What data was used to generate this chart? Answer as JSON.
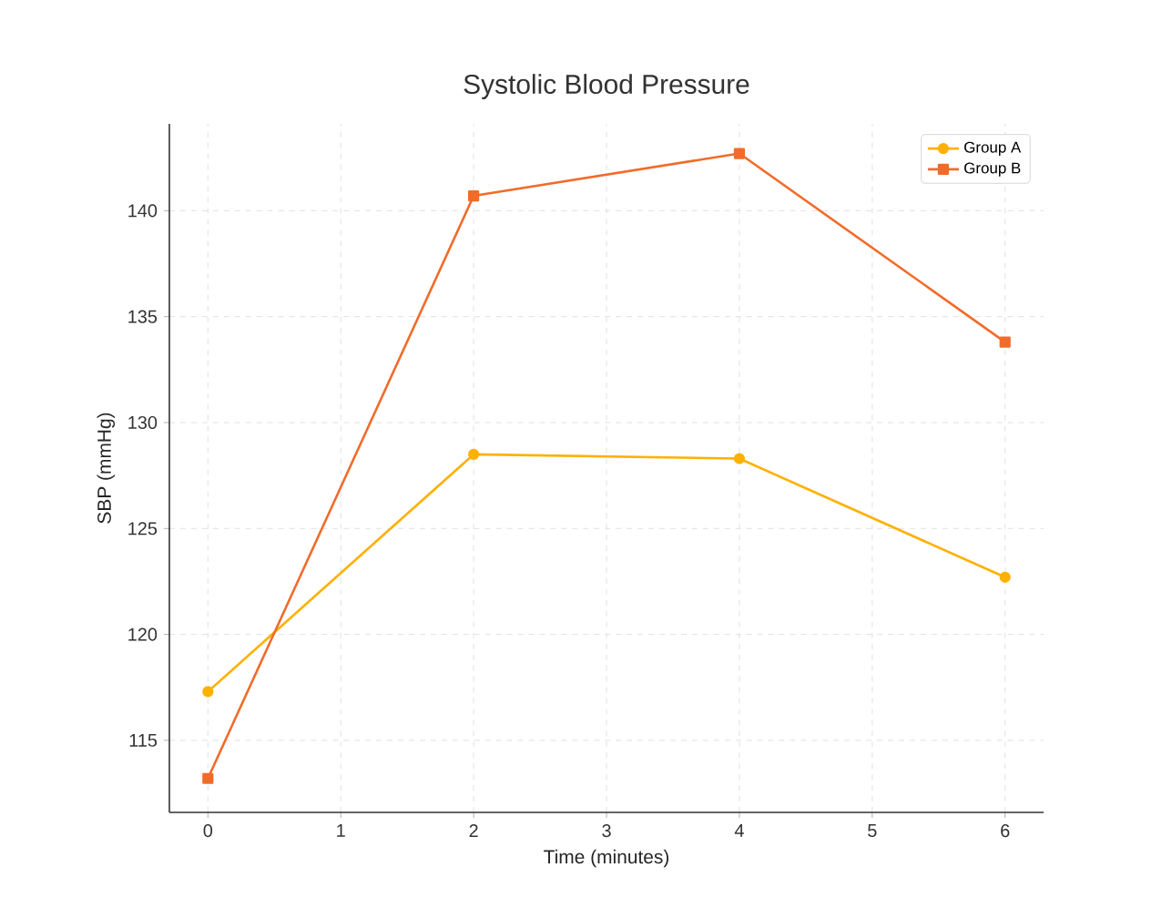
{
  "chart_data": {
    "type": "line",
    "title": "Systolic Blood Pressure",
    "xlabel": "Time (minutes)",
    "ylabel": "SBP (mmHg)",
    "x": [
      0,
      2,
      4,
      6
    ],
    "series": [
      {
        "name": "Group A",
        "color": "#ffb000",
        "marker": "circle",
        "values": [
          117.3,
          128.5,
          128.3,
          122.7
        ]
      },
      {
        "name": "Group B",
        "color": "#f26b2a",
        "marker": "square",
        "values": [
          113.2,
          140.7,
          142.7,
          133.8
        ]
      }
    ],
    "xlim": [
      -0.29,
      6.29
    ],
    "ylim": [
      111.6,
      144.1
    ],
    "xticks": [
      0,
      1,
      2,
      3,
      4,
      5,
      6
    ],
    "yticks": [
      115,
      120,
      125,
      130,
      135,
      140
    ],
    "grid": true,
    "legend": "top right",
    "line_style": "solid"
  }
}
